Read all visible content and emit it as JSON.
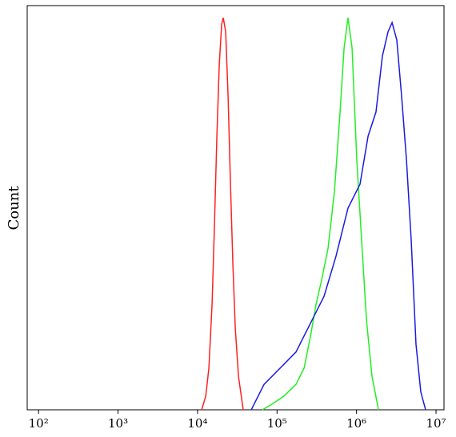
{
  "chart_data": {
    "type": "line",
    "y_label": "Count",
    "x_scale": "log",
    "xlim": [
      72,
      12600000
    ],
    "ylim": [
      0,
      100
    ],
    "xticks": [
      {
        "value": 100,
        "label": "10²"
      },
      {
        "value": 1000,
        "label": "10³"
      },
      {
        "value": 10000,
        "label": "10⁴"
      },
      {
        "value": 100000,
        "label": "10⁵"
      },
      {
        "value": 1000000,
        "label": "10⁶"
      },
      {
        "value": 10000000,
        "label": "10⁷"
      }
    ],
    "series": [
      {
        "color": "#ff2020",
        "x": [
          11270,
          12680,
          13900,
          15240,
          16330,
          17500,
          18790,
          20140,
          21090,
          22600,
          24220,
          25950,
          27840,
          29830,
          32710,
          37580
        ],
        "values": [
          0,
          3.4,
          10.3,
          26.1,
          45.9,
          67.7,
          85.5,
          95.4,
          97.0,
          93.5,
          77.6,
          55.8,
          36.0,
          20.2,
          8.3,
          0
        ]
      },
      {
        "color": "#22ee22",
        "x": [
          65620,
          86700,
          122700,
          173400,
          218800,
          263600,
          309700,
          363900,
          438500,
          527200,
          620900,
          696600,
          781600,
          879000,
          1009000,
          1159000,
          1334000,
          1567000,
          1888000
        ],
        "values": [
          0,
          1.4,
          3.4,
          6.3,
          10.3,
          18.2,
          26.1,
          32.1,
          40.0,
          53.9,
          73.7,
          89.5,
          97.0,
          89.5,
          61.8,
          42.0,
          22.2,
          8.3,
          0
        ]
      },
      {
        "color": "#1a1ae0",
        "x": [
          47430,
          68710,
          109200,
          173400,
          276100,
          390800,
          552100,
          781600,
          1107000,
          1396000,
          1758000,
          2118000,
          2489000,
          2799000,
          3214000,
          3690000,
          4246000,
          4875000,
          5598000,
          6442000,
          7396000
        ],
        "values": [
          0,
          6.3,
          10.3,
          14.3,
          22.2,
          28.1,
          38.0,
          49.9,
          55.8,
          67.7,
          73.7,
          87.5,
          93.5,
          95.8,
          91.5,
          77.6,
          61.8,
          42.0,
          16.2,
          4.4,
          0
        ]
      }
    ]
  }
}
